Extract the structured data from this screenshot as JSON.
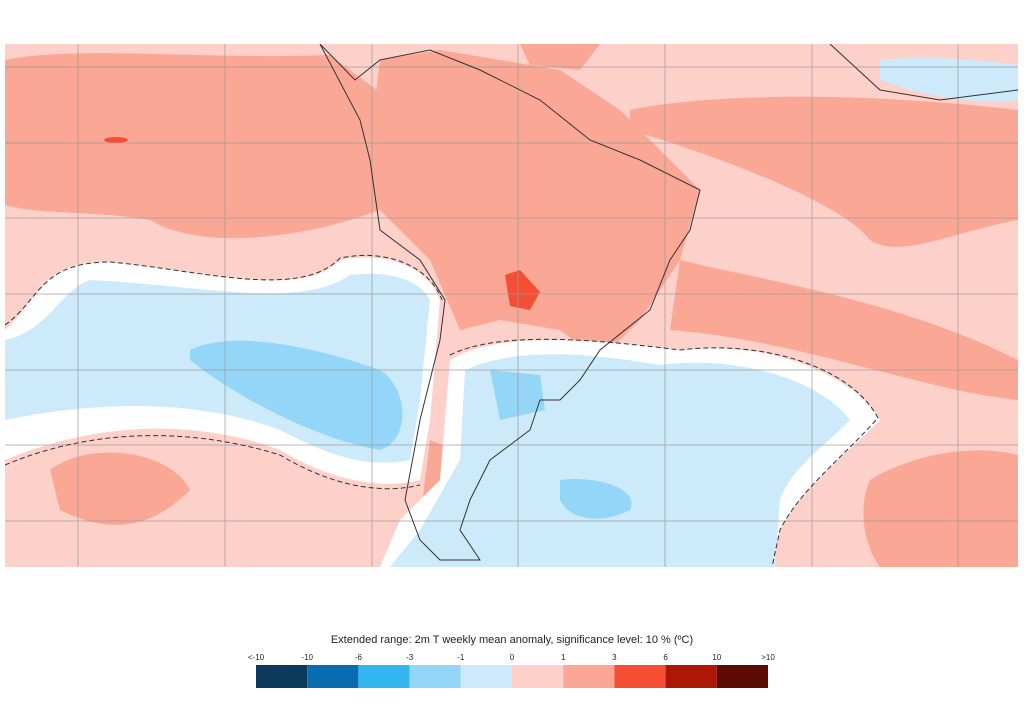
{
  "legend": {
    "title": "Extended range: 2m T weekly mean anomaly, significance level: 10 % (ºC)",
    "labels": [
      "<-10",
      "-10",
      "-6",
      "-3",
      "-1",
      "0",
      "1",
      "3",
      "6",
      "10",
      ">10"
    ],
    "colors": [
      "#0b3a5c",
      "#0a6cb0",
      "#33b5f0",
      "#94d6f8",
      "#cdeafb",
      "#fdd0ca",
      "#fba796",
      "#f64e32",
      "#ae1605",
      "#5c0a04"
    ]
  }
}
